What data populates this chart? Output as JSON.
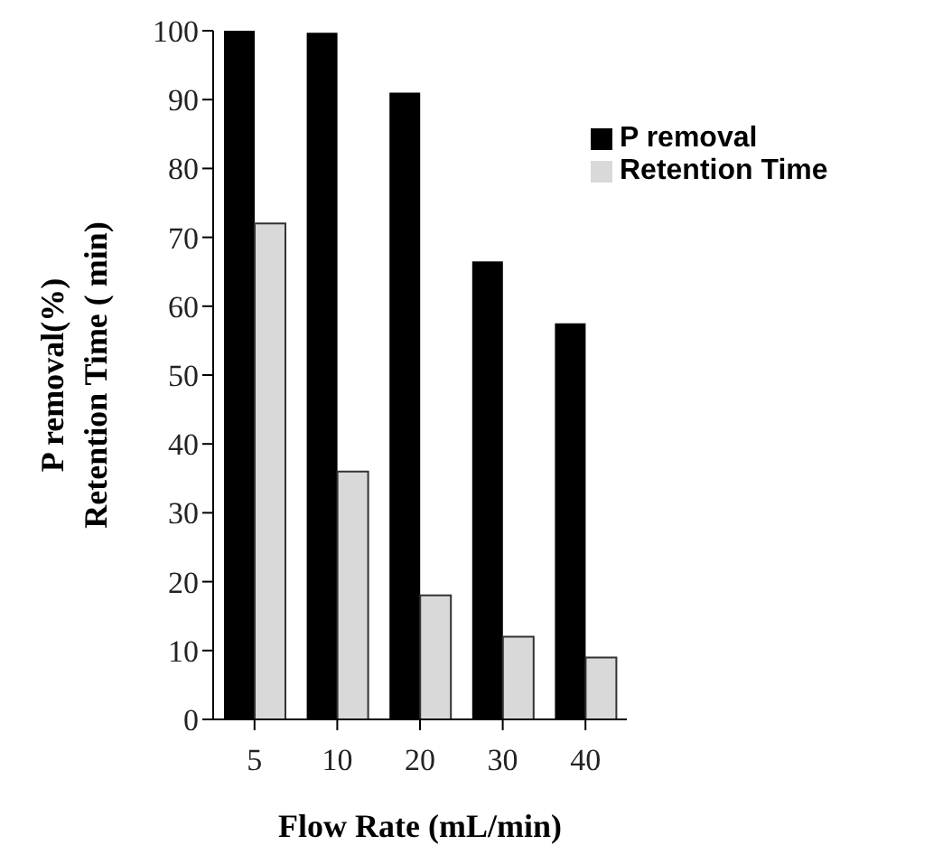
{
  "chart_data": {
    "type": "bar",
    "xlabel": "Flow Rate (mL/min)",
    "ylabel": "P removal(%)\nRetention Time ( min)",
    "categories": [
      "5",
      "10",
      "20",
      "30",
      "40"
    ],
    "series": [
      {
        "name": "P removal",
        "color": "#000000",
        "values": [
          100,
          99.7,
          91,
          66.5,
          57.5
        ]
      },
      {
        "name": "Retention Time",
        "color": "#d9d9d9",
        "values": [
          72,
          36,
          18,
          12,
          9
        ]
      }
    ],
    "ylim": [
      0,
      100
    ],
    "yticks": [
      0,
      10,
      20,
      30,
      40,
      50,
      60,
      70,
      80,
      90,
      100
    ],
    "grid": false,
    "legend": "top right"
  }
}
